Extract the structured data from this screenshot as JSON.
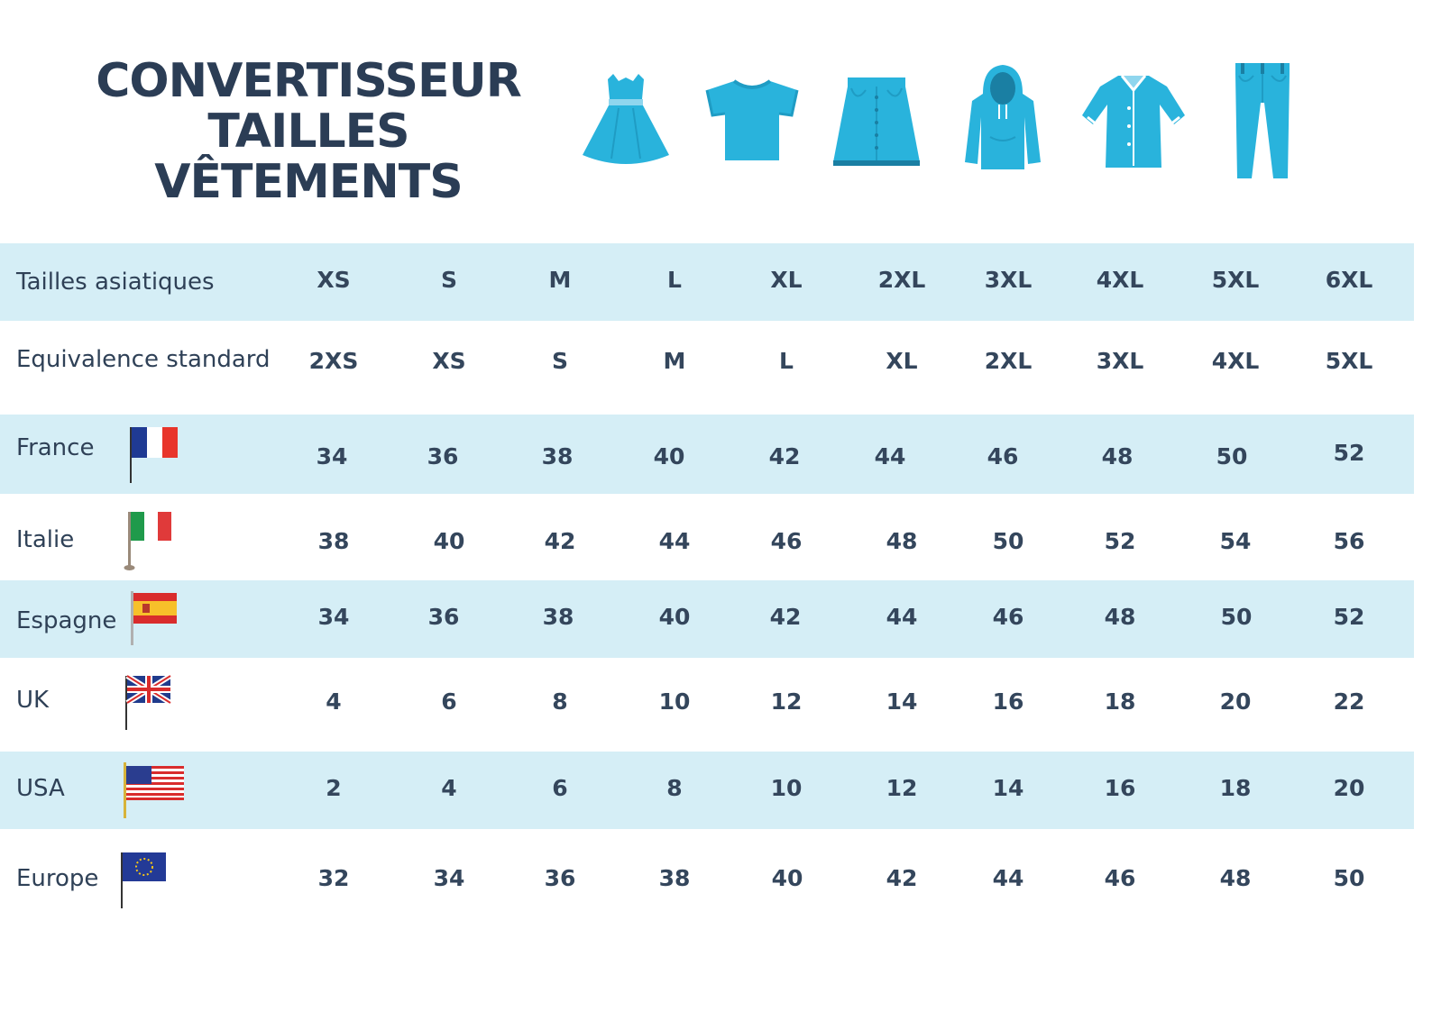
{
  "header": {
    "title_line1": "CONVERTISSEUR",
    "title_line2": "TAILLES VÊTEMENTS",
    "icons": [
      "dress-icon",
      "tshirt-icon",
      "skirt-icon",
      "hoodie-icon",
      "coat-icon",
      "jeans-icon"
    ],
    "icon_color": "#29b3dc",
    "title_color": "#2b3d55"
  },
  "colors": {
    "band": "#d5eef6",
    "text": "#34465c"
  },
  "table": {
    "rows": [
      {
        "label": "Tailles asiatiques",
        "values": [
          "XS",
          "S",
          "M",
          "L",
          "XL",
          "2XL",
          "3XL",
          "4XL",
          "5XL",
          "6XL"
        ]
      },
      {
        "label": "Equivalence standard",
        "values": [
          "2XS",
          "XS",
          "S",
          "M",
          "L",
          "XL",
          "2XL",
          "3XL",
          "4XL",
          "5XL"
        ]
      },
      {
        "label": "France",
        "flag": "france-flag-icon",
        "values": [
          "34",
          "36",
          "38",
          "40",
          "42",
          "44",
          "46",
          "48",
          "50",
          "52"
        ]
      },
      {
        "label": "Italie",
        "flag": "italy-flag-icon",
        "values": [
          "38",
          "40",
          "42",
          "44",
          "46",
          "48",
          "50",
          "52",
          "54",
          "56"
        ]
      },
      {
        "label": "Espagne",
        "flag": "spain-flag-icon",
        "values": [
          "34",
          "36",
          "38",
          "40",
          "42",
          "44",
          "46",
          "48",
          "50",
          "52"
        ]
      },
      {
        "label": "UK",
        "flag": "uk-flag-icon",
        "values": [
          "4",
          "6",
          "8",
          "10",
          "12",
          "14",
          "16",
          "18",
          "20",
          "22"
        ]
      },
      {
        "label": "USA",
        "flag": "usa-flag-icon",
        "values": [
          "2",
          "4",
          "6",
          "8",
          "10",
          "12",
          "14",
          "16",
          "18",
          "20"
        ]
      },
      {
        "label": "Europe",
        "flag": "eu-flag-icon",
        "values": [
          "32",
          "34",
          "36",
          "38",
          "40",
          "42",
          "44",
          "46",
          "48",
          "50"
        ]
      }
    ]
  }
}
